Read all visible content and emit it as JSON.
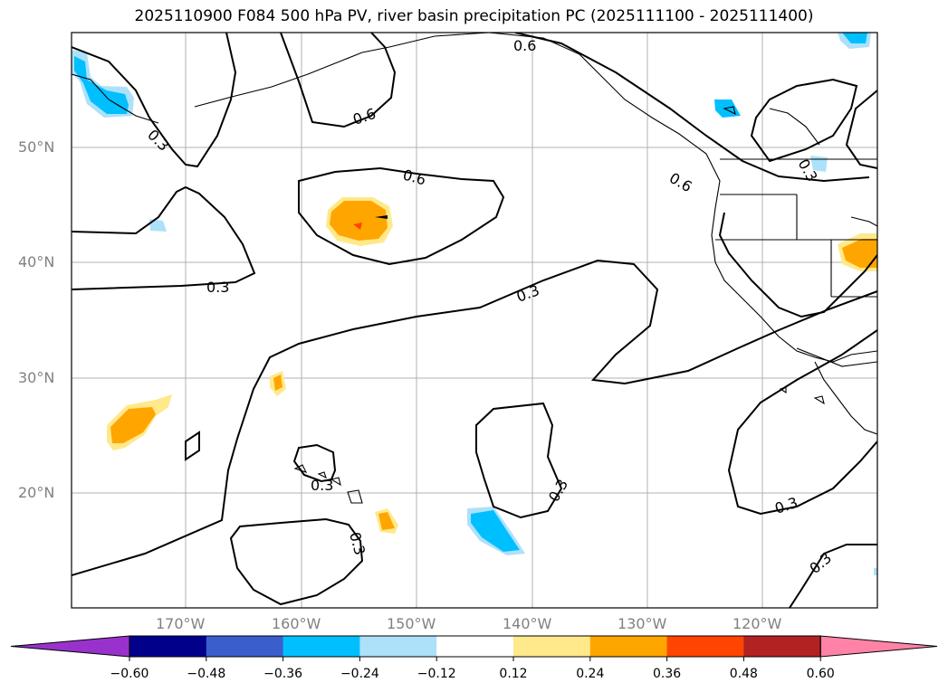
{
  "title": "2025110900 F084 500 hPa PV, river basin precipitation PC (2025111100 - 2025111400)",
  "lat_labels": [
    "50°N",
    "40°N",
    "30°N",
    "20°N"
  ],
  "lon_labels": [
    "170°W",
    "160°W",
    "150°W",
    "140°W",
    "130°W",
    "120°W"
  ],
  "contour_labels": [
    "0.3",
    "0.6",
    "0.6",
    "0.6",
    "0.6",
    "0.3",
    "0.3",
    "0.3",
    "0.3",
    "0.3",
    "0.3",
    "0.3",
    "0.3"
  ],
  "colorbar": {
    "ticks": [
      "−0.60",
      "−0.48",
      "−0.36",
      "−0.24",
      "−0.12",
      "0.12",
      "0.24",
      "0.36",
      "0.48",
      "0.60"
    ],
    "colors": [
      "#9932CC",
      "#00008B",
      "#3A5FCD",
      "#00BFFF",
      "#ADE1FA",
      "#FFFFFF",
      "#FFE98A",
      "#FFA500",
      "#FF4500",
      "#B22222",
      "#FF83A7"
    ]
  }
}
